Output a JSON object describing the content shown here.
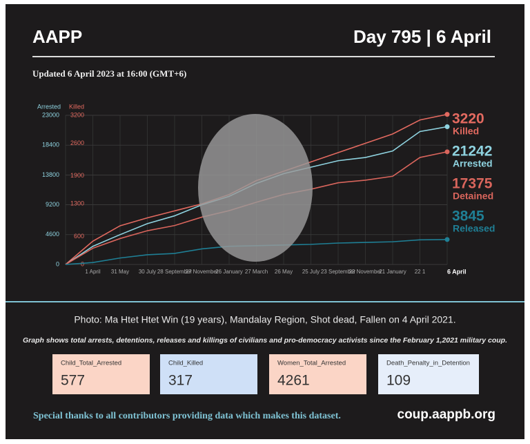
{
  "header": {
    "title": "AAPP",
    "day": "Day 795 | 6 April"
  },
  "updated": "Updated 6 April 2023 at 16:00 (GMT+6)",
  "chart_data": {
    "type": "line",
    "y_label": "Arrested",
    "y2_label": "Killed",
    "x": [
      null,
      "1 April",
      "31 May",
      "30 July",
      "28 September",
      "27 November",
      "26 January",
      "27 March",
      "26 May",
      "25 July",
      "23 September",
      "22 November",
      "21 January",
      "22 1",
      "6 April"
    ],
    "ylim": [
      0,
      23000
    ],
    "yticks": [
      0,
      4600,
      9200,
      13800,
      18400,
      23000
    ],
    "y2lim": [
      0,
      3200
    ],
    "y2ticks": [
      0,
      600,
      1300,
      1900,
      2600,
      3200
    ],
    "grid": true,
    "series": [
      {
        "name": "Killed",
        "color": "#e36a60",
        "axis": "y2",
        "values": [
          0,
          500,
          830,
          1000,
          1150,
          1300,
          1500,
          1800,
          2000,
          2200,
          2400,
          2600,
          2800,
          3100,
          3220
        ]
      },
      {
        "name": "Arrested",
        "color": "#8fd3e0",
        "values": [
          0,
          2800,
          4600,
          6300,
          7500,
          9200,
          10500,
          12500,
          14000,
          15000,
          16000,
          16500,
          17500,
          20500,
          21242
        ]
      },
      {
        "name": "Detained",
        "color": "#d9655c",
        "values": [
          0,
          2500,
          4000,
          5200,
          6000,
          7300,
          8300,
          9600,
          10800,
          11600,
          12600,
          13000,
          13600,
          16500,
          17375
        ]
      },
      {
        "name": "Released",
        "color": "#1f7f95",
        "values": [
          0,
          300,
          1000,
          1500,
          1700,
          2400,
          2800,
          2900,
          3000,
          3100,
          3300,
          3400,
          3500,
          3800,
          3845
        ]
      }
    ]
  },
  "photo_caption": "Photo: Ma Htet Htet Win (19 years), Mandalay Region, Shot dead, Fallen on 4 April 2021.",
  "note": "Graph shows total arrests, detentions, releases and killings of civilians and pro-democracy activists since the February 1,2021 military coup.",
  "stats": [
    {
      "label": "Child_Total_Arrested",
      "value": 577,
      "color": "#fbd5c6"
    },
    {
      "label": "Child_Killed",
      "value": 317,
      "color": "#cfe0f7"
    },
    {
      "label": "Women_Total_Arrested",
      "value": 4261,
      "color": "#fbd5c6"
    },
    {
      "label": "Death_Penalty_in_Detention",
      "value": 109,
      "color": "#e6eefa"
    }
  ],
  "footer": {
    "thanks": "Special thanks to all contributors providing data which makes this dataset.",
    "url": "coup.aappb.org"
  }
}
